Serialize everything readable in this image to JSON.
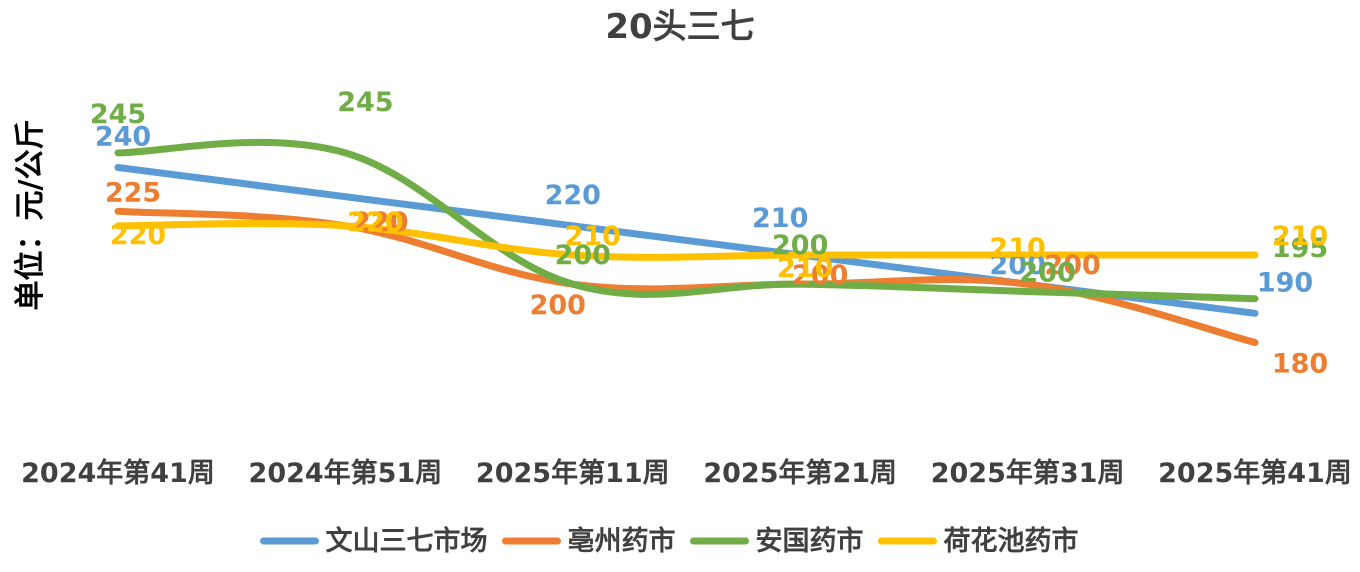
{
  "chart_data": {
    "type": "line",
    "title": "20头三七",
    "ylabel": "单位：元/公斤",
    "xlabel": "",
    "categories": [
      "2024年第41周",
      "2024年第51周",
      "2025年第11周",
      "2025年第21周",
      "2025年第31周",
      "2025年第41周"
    ],
    "ylim": [
      150,
      270
    ],
    "grid": false,
    "legend_position": "bottom",
    "smooth": true,
    "series": [
      {
        "name": "文山三七市场",
        "color": "#5B9BD5",
        "values": [
          240,
          null,
          220,
          210,
          null,
          190
        ],
        "labels": [
          "240",
          "",
          "220",
          "210",
          "200",
          "190"
        ]
      },
      {
        "name": "亳州药市",
        "color": "#ED7D31",
        "values": [
          225,
          220,
          200,
          null,
          200,
          180
        ],
        "labels": [
          "225",
          "220",
          "200",
          "200",
          "200",
          "180"
        ]
      },
      {
        "name": "安国药市",
        "color": "#70AD47",
        "values": [
          245,
          245,
          200,
          200,
          null,
          195
        ],
        "labels": [
          "245",
          "245",
          "200",
          "200",
          "200",
          "195"
        ]
      },
      {
        "name": "荷花池药市",
        "color": "#FFC000",
        "values": [
          220,
          220,
          210,
          210,
          210,
          210
        ],
        "labels": [
          "220",
          "220",
          "210",
          "210",
          "210",
          "210"
        ]
      }
    ]
  }
}
